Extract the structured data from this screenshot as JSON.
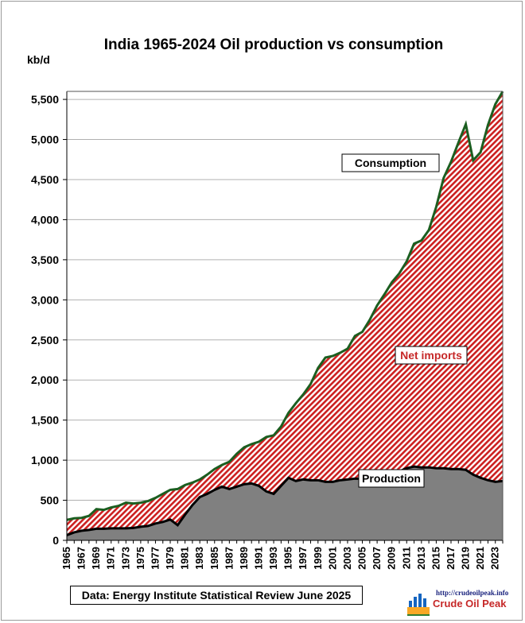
{
  "chart_data": {
    "type": "area",
    "title": "India 1965-2024 Oil production vs consumption",
    "ylabel": "kb/d",
    "xlabel": "",
    "ylim": [
      0,
      5600
    ],
    "yticks": [
      0,
      500,
      1000,
      1500,
      2000,
      2500,
      3000,
      3500,
      4000,
      4500,
      5000,
      5500
    ],
    "ytick_labels": [
      "0",
      "500",
      "1,000",
      "1,500",
      "2,000",
      "2,500",
      "3,000",
      "3,500",
      "4,000",
      "4,500",
      "5,000",
      "5,500"
    ],
    "x": [
      1965,
      1966,
      1967,
      1968,
      1969,
      1970,
      1971,
      1972,
      1973,
      1974,
      1975,
      1976,
      1977,
      1978,
      1979,
      1980,
      1981,
      1982,
      1983,
      1984,
      1985,
      1986,
      1987,
      1988,
      1989,
      1990,
      1991,
      1992,
      1993,
      1994,
      1995,
      1996,
      1997,
      1998,
      1999,
      2000,
      2001,
      2002,
      2003,
      2004,
      2005,
      2006,
      2007,
      2008,
      2009,
      2010,
      2011,
      2012,
      2013,
      2014,
      2015,
      2016,
      2017,
      2018,
      2019,
      2020,
      2021,
      2022,
      2023,
      2024
    ],
    "xtick_labels": [
      "1965",
      "1967",
      "1969",
      "1971",
      "1973",
      "1975",
      "1977",
      "1979",
      "1981",
      "1983",
      "1985",
      "1987",
      "1989",
      "1991",
      "1993",
      "1995",
      "1997",
      "1999",
      "2001",
      "2003",
      "2005",
      "2007",
      "2009",
      "2011",
      "2013",
      "2015",
      "2017",
      "2019",
      "2021",
      "2023"
    ],
    "grid": true,
    "series": [
      {
        "name": "Consumption",
        "color": "#1b5e20",
        "values": [
          255,
          275,
          280,
          305,
          390,
          380,
          410,
          430,
          470,
          460,
          470,
          490,
          530,
          580,
          630,
          640,
          690,
          720,
          760,
          820,
          890,
          940,
          980,
          1080,
          1160,
          1200,
          1230,
          1290,
          1310,
          1420,
          1590,
          1710,
          1820,
          1950,
          2150,
          2280,
          2300,
          2340,
          2390,
          2550,
          2600,
          2750,
          2930,
          3070,
          3220,
          3330,
          3480,
          3700,
          3740,
          3870,
          4160,
          4520,
          4720,
          4960,
          5190,
          4740,
          4840,
          5180,
          5440,
          5600
        ]
      },
      {
        "name": "Production",
        "color": "#808080",
        "values": [
          65,
          100,
          120,
          130,
          145,
          145,
          150,
          150,
          150,
          155,
          170,
          180,
          210,
          230,
          260,
          190,
          320,
          440,
          540,
          580,
          630,
          670,
          640,
          670,
          700,
          710,
          680,
          610,
          580,
          680,
          780,
          740,
          760,
          750,
          750,
          730,
          730,
          750,
          760,
          770,
          770,
          780,
          800,
          830,
          830,
          860,
          900,
          920,
          910,
          910,
          900,
          900,
          890,
          890,
          880,
          820,
          780,
          750,
          730,
          740
        ]
      }
    ],
    "annotations": [
      {
        "text": "Consumption"
      },
      {
        "text": "Net imports"
      },
      {
        "text": "Production"
      }
    ],
    "source": "Data: Energy Institute Statistical Review June 2025",
    "logo": {
      "url": "http://crudeoilpeak.info",
      "name": "Crude Oil Peak"
    }
  }
}
